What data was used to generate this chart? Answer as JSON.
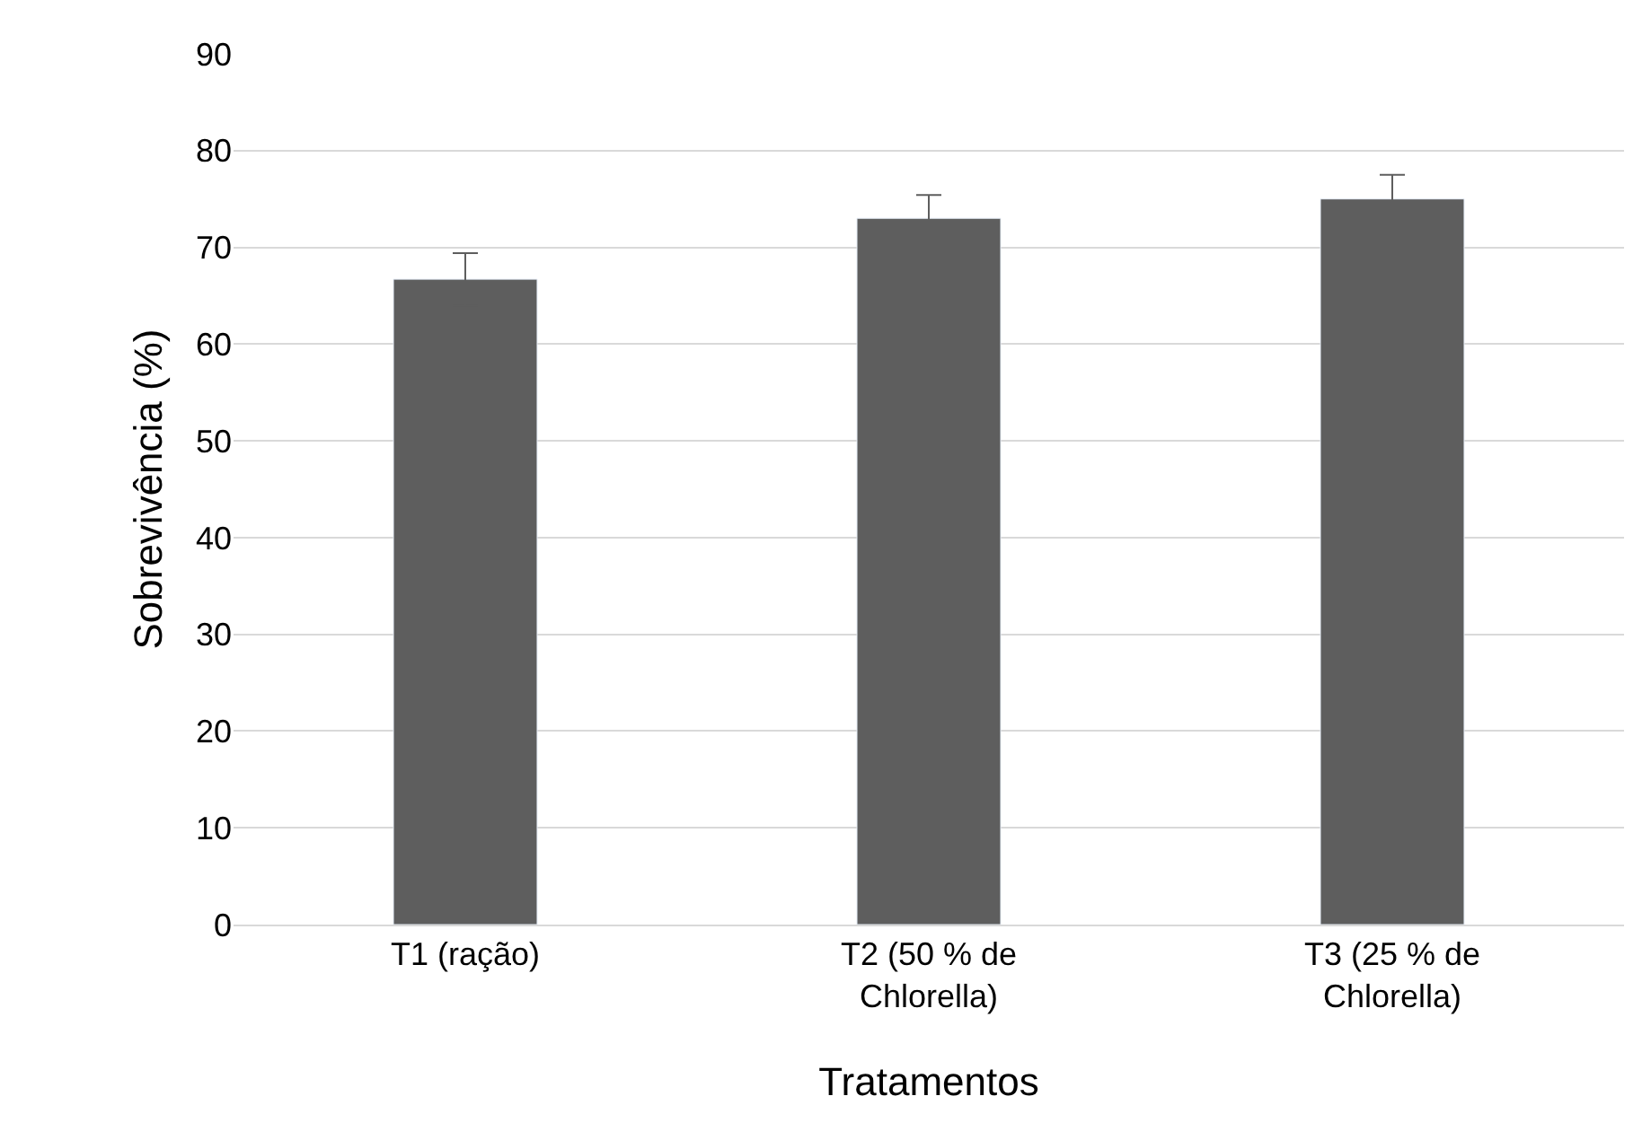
{
  "chart_data": {
    "type": "bar",
    "xlabel": "Tratamentos",
    "ylabel": "Sobrevivência (%)",
    "categories": [
      "T1 (ração)",
      "T2 (50 % de Chlorella)",
      "T3 (25 % de Chlorella)"
    ],
    "values": [
      66.7,
      73.0,
      75.0
    ],
    "errors": [
      2.7,
      2.4,
      2.5
    ],
    "color": "#5e5e5e",
    "ylim": [
      0,
      90
    ],
    "yticks": [
      0,
      10,
      20,
      30,
      40,
      50,
      60,
      70,
      80,
      90
    ],
    "grid": "y"
  }
}
